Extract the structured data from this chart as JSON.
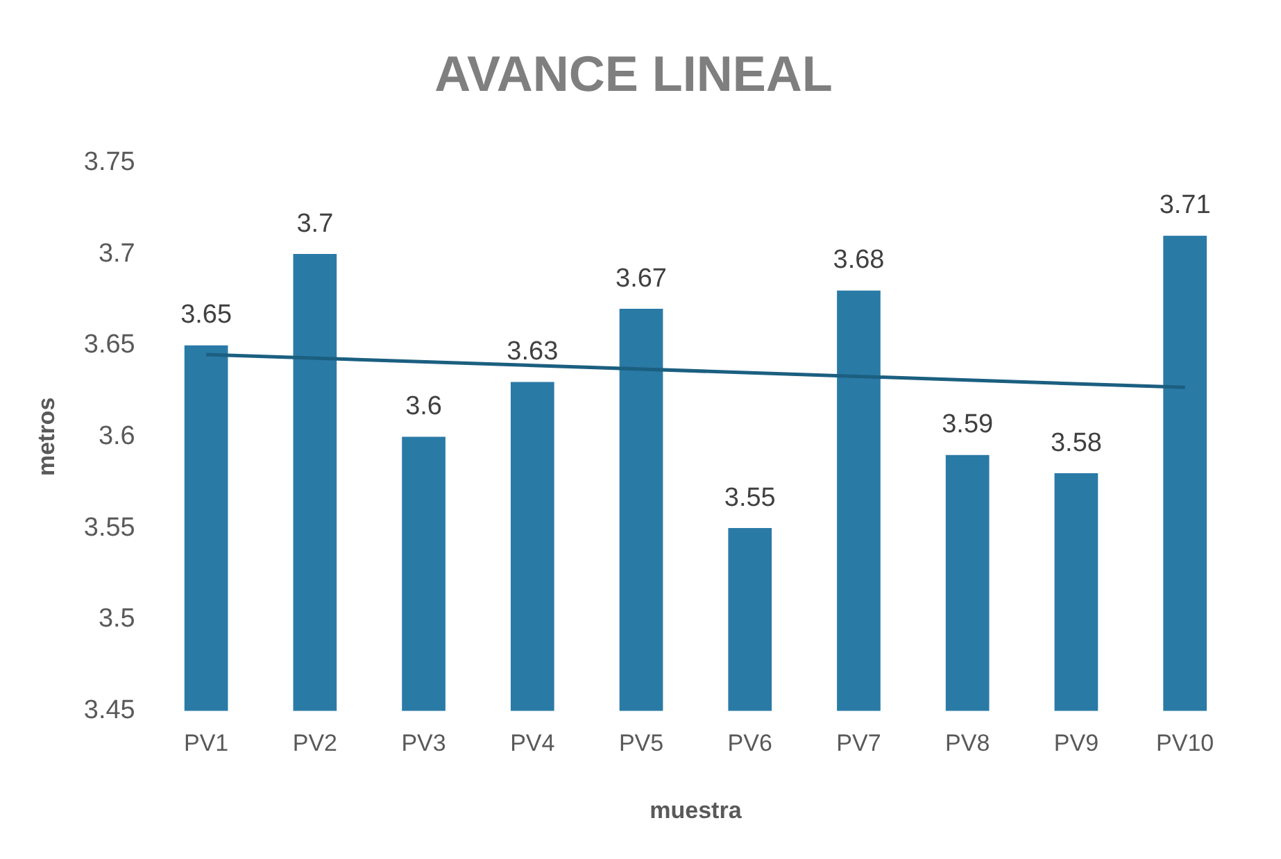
{
  "chart_data": {
    "type": "bar",
    "title": "AVANCE LINEAL",
    "xlabel": "muestra",
    "ylabel": "metros",
    "categories": [
      "PV1",
      "PV2",
      "PV3",
      "PV4",
      "PV5",
      "PV6",
      "PV7",
      "PV8",
      "PV9",
      "PV10"
    ],
    "series": [
      {
        "color": "#2a7aa6",
        "values": [
          3.65,
          3.7,
          3.6,
          3.63,
          3.67,
          3.55,
          3.68,
          3.59,
          3.58,
          3.71
        ],
        "value_labels": [
          "3.65",
          "3.7",
          "3.6",
          "3.63",
          "3.67",
          "3.55",
          "3.68",
          "3.59",
          "3.58",
          "3.71"
        ]
      },
      {
        "type": "line",
        "color": "#1b5f80",
        "x": [
          "PV1",
          "PV10"
        ],
        "values": [
          3.645,
          3.627
        ]
      }
    ],
    "ylim": [
      3.45,
      3.75
    ],
    "yticks": [
      3.45,
      3.5,
      3.55,
      3.6,
      3.65,
      3.7,
      3.75
    ],
    "grid": false,
    "legend": false,
    "marker": "none"
  }
}
